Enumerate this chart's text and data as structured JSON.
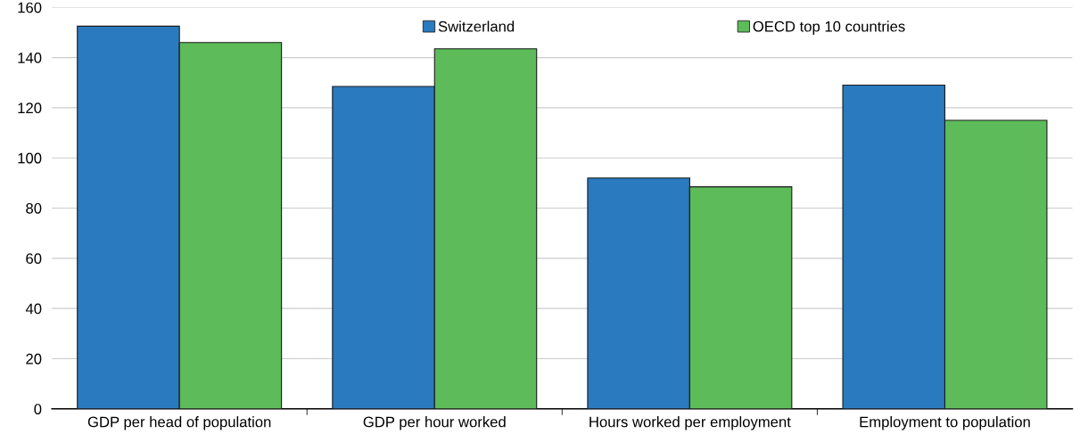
{
  "chart_data": {
    "type": "bar",
    "categories": [
      "GDP per head of population",
      "GDP per hour worked",
      "Hours worked per employment",
      "Employment to population"
    ],
    "series": [
      {
        "name": "Switzerland",
        "color": "#2a7abf",
        "values": [
          152.5,
          128.5,
          92,
          129
        ]
      },
      {
        "name": "OECD top 10 countries",
        "color": "#5dbb5a",
        "values": [
          146,
          143.5,
          88.5,
          115
        ]
      }
    ],
    "ylim": [
      0,
      160
    ],
    "yticks": [
      0,
      20,
      40,
      60,
      80,
      100,
      120,
      140,
      160
    ],
    "grid": "y",
    "legend": "top"
  }
}
